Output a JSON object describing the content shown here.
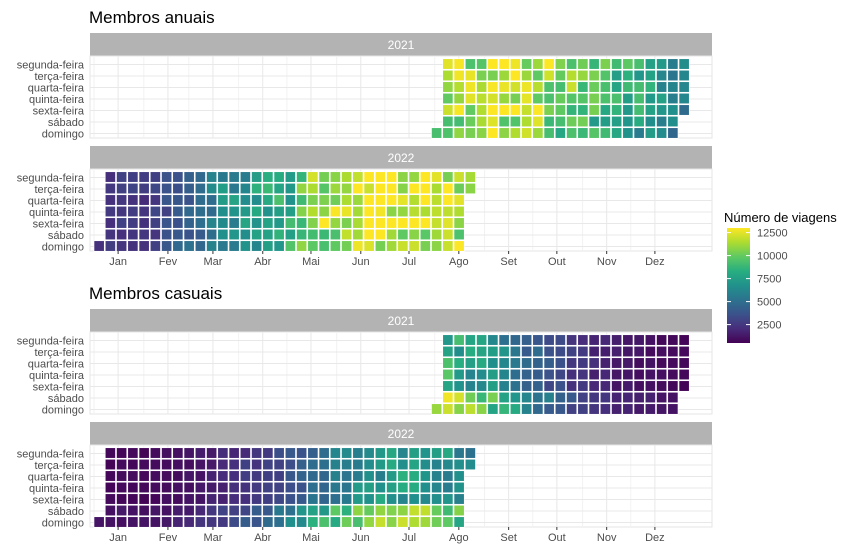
{
  "chart_data": {
    "type": "heatmap",
    "subtype": "calendar",
    "weekdays": [
      "segunda-feira",
      "terça-feira",
      "quarta-feira",
      "quinta-feira",
      "sexta-feira",
      "sábado",
      "domingo"
    ],
    "months": [
      "Jan",
      "Fev",
      "Mar",
      "Abr",
      "Mai",
      "Jun",
      "Jul",
      "Ago",
      "Set",
      "Out",
      "Nov",
      "Dez"
    ],
    "grid": true,
    "legend": {
      "title": "Número de viagens",
      "position": "right",
      "ticks": [
        2500,
        5000,
        7500,
        10000,
        12500
      ],
      "range": [
        500,
        13000
      ]
    },
    "colormap": [
      "#440154",
      "#472d7b",
      "#3b528b",
      "#2c728e",
      "#21918c",
      "#28ae80",
      "#5ec962",
      "#addc30",
      "#fde725"
    ],
    "panels": [
      {
        "title": "Membros anuais",
        "facets": [
          {
            "year": "2021",
            "first_weekday": 4,
            "start_day": 213,
            "end_day": 365,
            "weekly_values": [
              11200,
              11600,
              11300,
              11600,
              11900,
              12200,
              12100,
              11800,
              11600,
              11200,
              10800,
              10400,
              9800,
              9400,
              9100,
              8800,
              8400,
              7900,
              7300,
              6900,
              6400,
              5600
            ]
          },
          {
            "year": "2022",
            "first_weekday": 6,
            "start_day": 1,
            "end_day": 227,
            "weekly_values": [
              2300,
              2600,
              2700,
              2400,
              2900,
              3500,
              3900,
              4400,
              4900,
              5600,
              6300,
              6600,
              6900,
              7600,
              7800,
              8300,
              8200,
              10400,
              11200,
              11600,
              11900,
              12300,
              12500,
              12700,
              12900,
              12800,
              12900,
              12900,
              12800,
              12700,
              12500,
              12300,
              12000
            ]
          }
        ]
      },
      {
        "title": "Membros casuais",
        "facets": [
          {
            "year": "2021",
            "first_weekday": 4,
            "start_day": 213,
            "end_day": 365,
            "weekly_values": [
              8400,
              7900,
              7200,
              6900,
              6500,
              6000,
              5400,
              4800,
              4300,
              3700,
              3100,
              2600,
              2300,
              1900,
              1700,
              1400,
              1200,
              1100,
              1000,
              900,
              800,
              700
            ]
          },
          {
            "year": "2022",
            "first_weekday": 6,
            "start_day": 1,
            "end_day": 227,
            "weekly_values": [
              700,
              800,
              800,
              700,
              800,
              900,
              1000,
              1100,
              1300,
              1500,
              1900,
              2100,
              2400,
              2700,
              2900,
              3300,
              3700,
              4300,
              4900,
              5400,
              5900,
              6200,
              6400,
              6700,
              6900,
              7100,
              7300,
              7300,
              7200,
              7000,
              6800,
              6500,
              6200
            ]
          }
        ]
      }
    ]
  }
}
